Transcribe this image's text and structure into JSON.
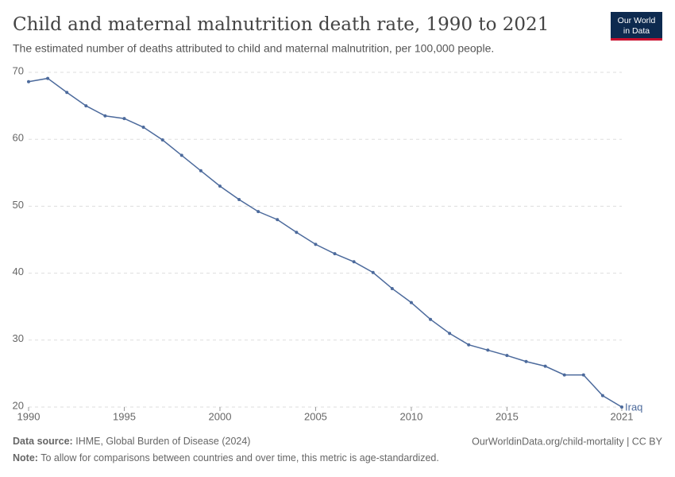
{
  "chart_data": {
    "type": "line",
    "title": "Child and maternal malnutrition death rate, 1990 to 2021",
    "subtitle": "The estimated number of deaths attributed to child and maternal malnutrition, per 100,000 people.",
    "logo": [
      "Our World",
      "in Data"
    ],
    "source_label": "Data source:",
    "source_text": "IHME, Global Burden of Disease (2024)",
    "url": "OurWorldinData.org/child-mortality | CC BY",
    "note_label": "Note:",
    "note_text": "To allow for comparisons between countries and over time, this metric is age-standardized.",
    "x": [
      1990,
      1991,
      1992,
      1993,
      1994,
      1995,
      1996,
      1997,
      1998,
      1999,
      2000,
      2001,
      2002,
      2003,
      2004,
      2005,
      2006,
      2007,
      2008,
      2009,
      2010,
      2011,
      2012,
      2013,
      2014,
      2015,
      2016,
      2017,
      2018,
      2019,
      2020,
      2021
    ],
    "series": [
      {
        "name": "Iraq",
        "color": "#4c6a9c",
        "values": [
          68.6,
          69.1,
          67.0,
          65.0,
          63.5,
          63.1,
          61.8,
          59.9,
          57.6,
          55.3,
          53.0,
          51.0,
          49.2,
          48.0,
          46.1,
          44.3,
          42.9,
          41.7,
          40.1,
          37.7,
          35.6,
          33.1,
          31.0,
          29.3,
          28.5,
          27.7,
          26.8,
          26.1,
          24.8,
          24.8,
          21.7,
          20.0
        ]
      }
    ],
    "xlim": [
      1990,
      2021
    ],
    "xticks": [
      1990,
      1995,
      2000,
      2005,
      2010,
      2015,
      2021
    ],
    "ylim": [
      20,
      70
    ],
    "yticks": [
      20,
      30,
      40,
      50,
      60,
      70
    ],
    "grid": true
  }
}
